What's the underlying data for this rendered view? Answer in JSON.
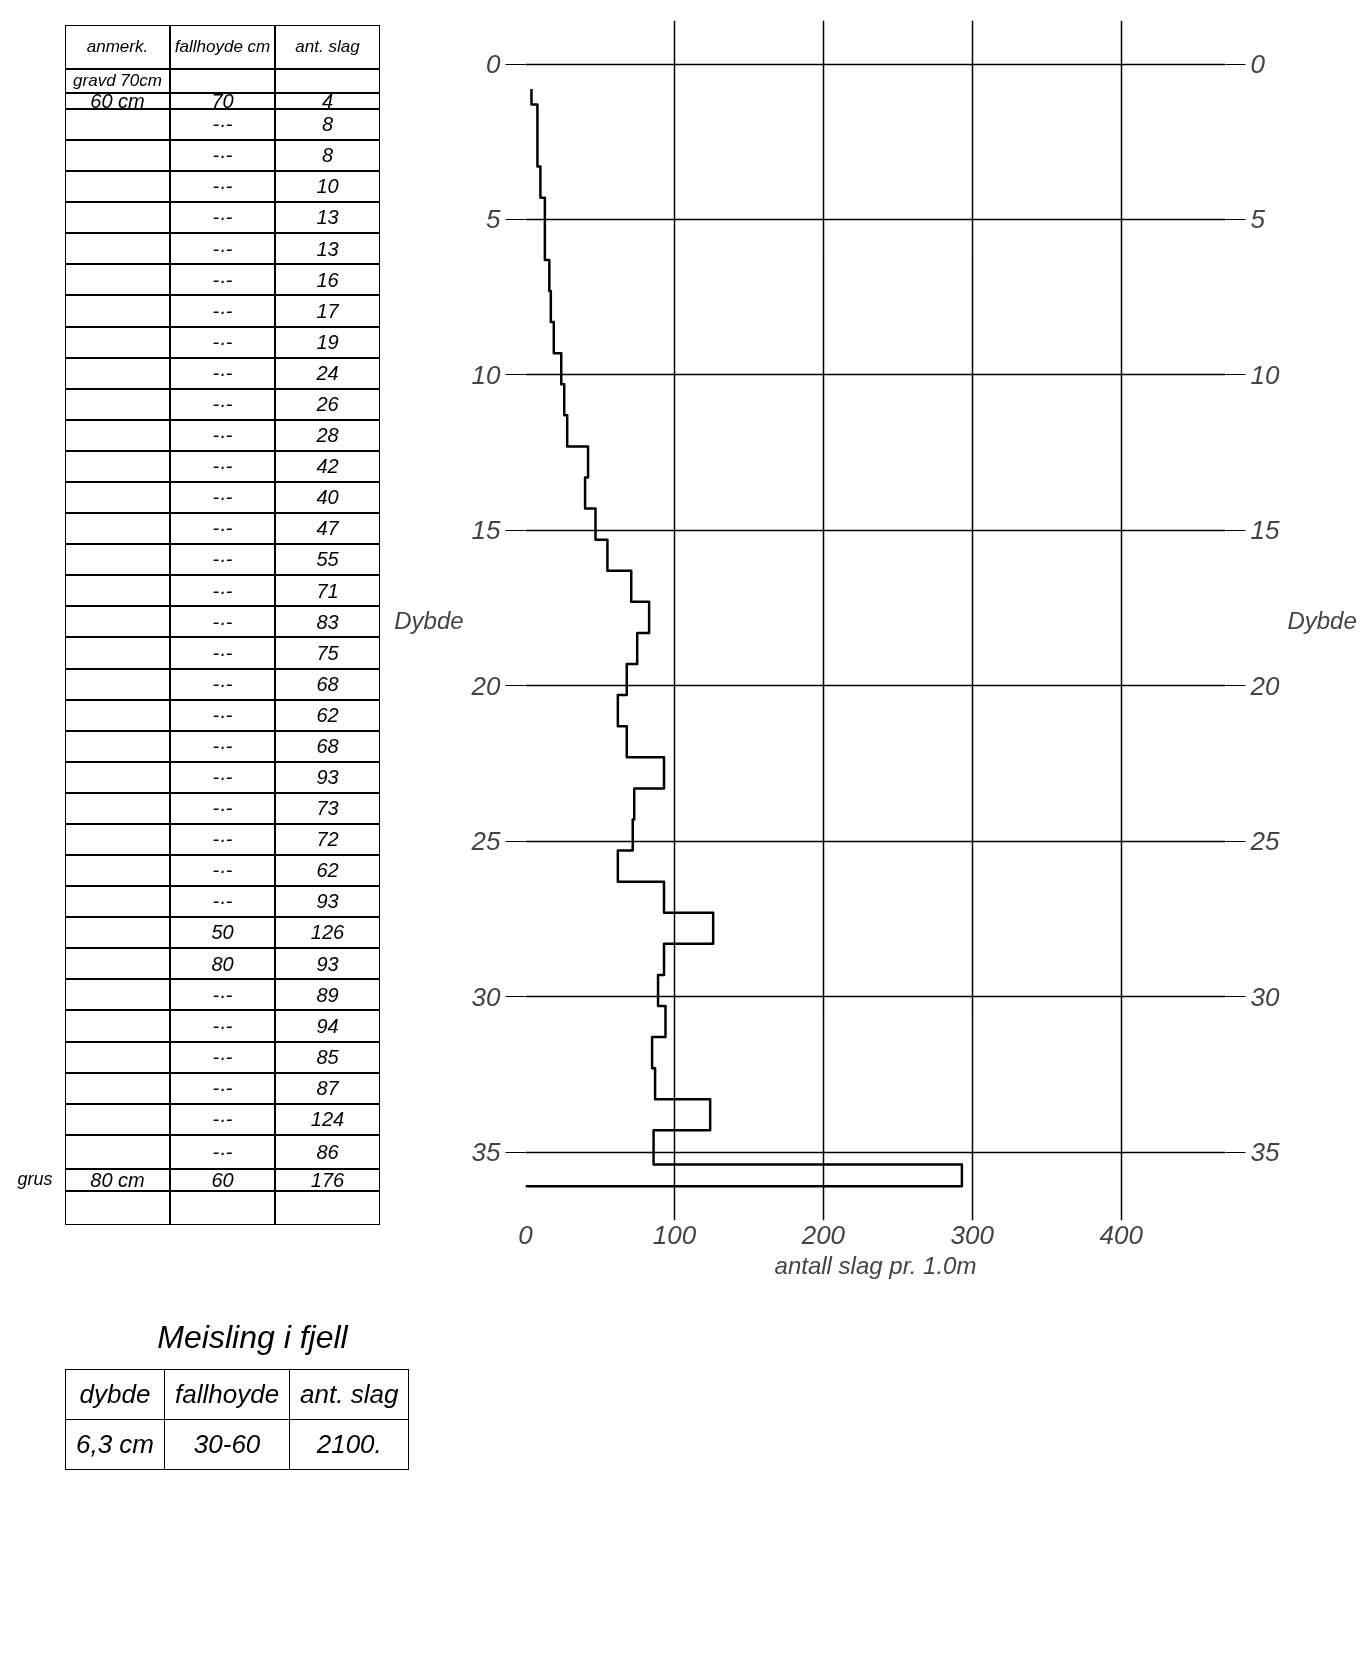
{
  "chart_data": {
    "type": "step",
    "orientation": "horizontal",
    "xlabel": "antall slag pr. 1.0m",
    "ylabel": "Dybde",
    "y2label": "Dybde",
    "x": [
      0.8,
      1.3,
      2.3,
      3.3,
      4.3,
      5.3,
      6.3,
      7.3,
      8.3,
      9.3,
      10.3,
      11.3,
      12.3,
      13.3,
      14.3,
      15.3,
      16.3,
      17.3,
      18.3,
      19.3,
      20.3,
      21.3,
      22.3,
      23.3,
      24.3,
      25.3,
      26.3,
      27.3,
      28.3,
      29.3,
      30.3,
      31.3,
      32.3,
      33.3,
      34.3,
      35.4,
      36.1
    ],
    "series": [
      {
        "color": "#000000",
        "values": [
          4,
          8,
          8,
          10,
          13,
          13,
          16,
          17,
          19,
          24,
          26,
          28,
          42,
          40,
          47,
          55,
          71,
          83,
          75,
          68,
          62,
          68,
          93,
          73,
          72,
          62,
          93,
          126,
          93,
          89,
          94,
          85,
          87,
          124,
          86,
          293,
          0
        ]
      }
    ],
    "xlim": [
      0,
      470
    ],
    "ylim": [
      37.2,
      -1.4
    ],
    "y2lim": [
      37.2,
      -1.4
    ],
    "xticks": [
      0,
      100,
      200,
      300,
      400
    ],
    "yticks": [
      0,
      5,
      10,
      15,
      20,
      25,
      30,
      35
    ],
    "y2ticks": [
      0,
      5,
      10,
      15,
      20,
      25,
      30,
      35
    ],
    "grid": true,
    "annotations": [
      "anmerk.",
      "fallhoyde cm",
      "ant. slag",
      "gravd 70cm",
      "60 cm",
      "70",
      "-·-",
      "-·-",
      "-·-",
      "-·-",
      "-·-",
      "-·-",
      "-·-",
      "-·-",
      "-·-",
      "-·-",
      "-·-",
      "-·-",
      "-·-",
      "-·-",
      "-·-",
      "-·-",
      "-·-",
      "-·-",
      "-·-",
      "-·-",
      "-·-",
      "-·-",
      "-·-",
      "-·-",
      "-·-",
      "-·-",
      "50",
      "80",
      "-·-",
      "-·-",
      "-·-",
      "-·-",
      "-·-",
      "-·-",
      "60",
      "4",
      "8",
      "8",
      "10",
      "13",
      "13",
      "16",
      "17",
      "19",
      "24",
      "26",
      "28",
      "42",
      "40",
      "47",
      "55",
      "71",
      "83",
      "75",
      "68",
      "62",
      "68",
      "93",
      "73",
      "72",
      "62",
      "93",
      "126",
      "93",
      "89",
      "94",
      "85",
      "87",
      "124",
      "86",
      "176",
      "80 cm",
      "grus",
      "Meisling i fjell",
      "dybde",
      "fallhoyde",
      "ant. slag",
      "6,3 cm",
      "30-60",
      "2100."
    ]
  }
}
